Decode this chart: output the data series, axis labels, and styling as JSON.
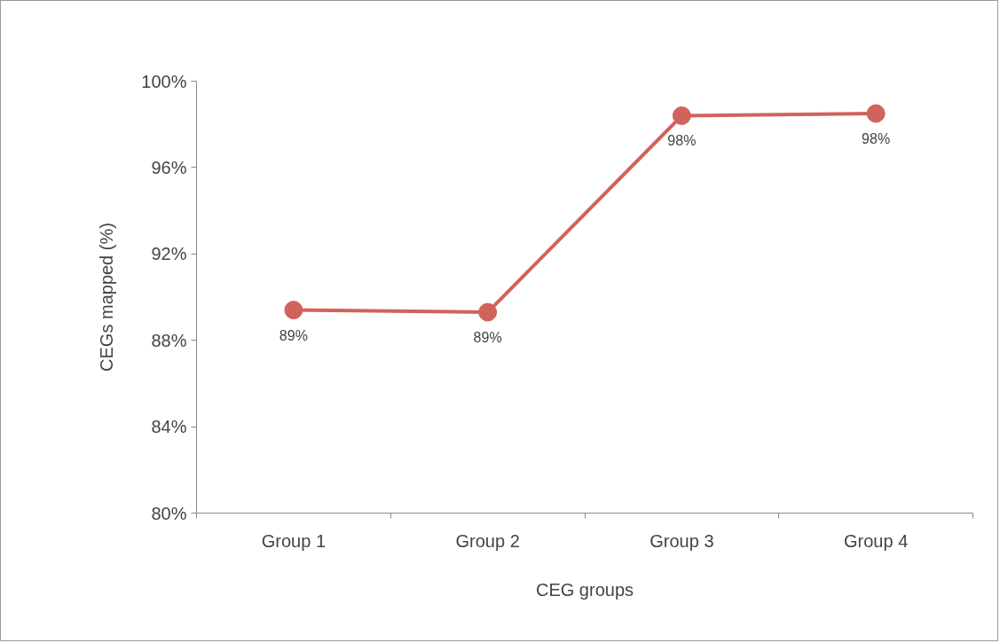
{
  "chart_data": {
    "type": "line",
    "xlabel": "CEG groups",
    "ylabel": "CEGs mapped (%)",
    "categories": [
      "Group 1",
      "Group 2",
      "Group 3",
      "Group 4"
    ],
    "series": [
      {
        "color": "#d0635a",
        "values": [
          89.4,
          89.3,
          98.4,
          98.5
        ],
        "value_labels": [
          "89%",
          "89%",
          "98%",
          "98%"
        ]
      }
    ],
    "ylim": [
      80,
      100
    ],
    "yticks": [
      {
        "value": 80,
        "label": "80%"
      },
      {
        "value": 84,
        "label": "84%"
      },
      {
        "value": 88,
        "label": "88%"
      },
      {
        "value": 92,
        "label": "92%"
      },
      {
        "value": 96,
        "label": "96%"
      },
      {
        "value": 100,
        "label": "100%"
      }
    ],
    "marker": "circle",
    "line_style": "solid",
    "grid": false
  }
}
